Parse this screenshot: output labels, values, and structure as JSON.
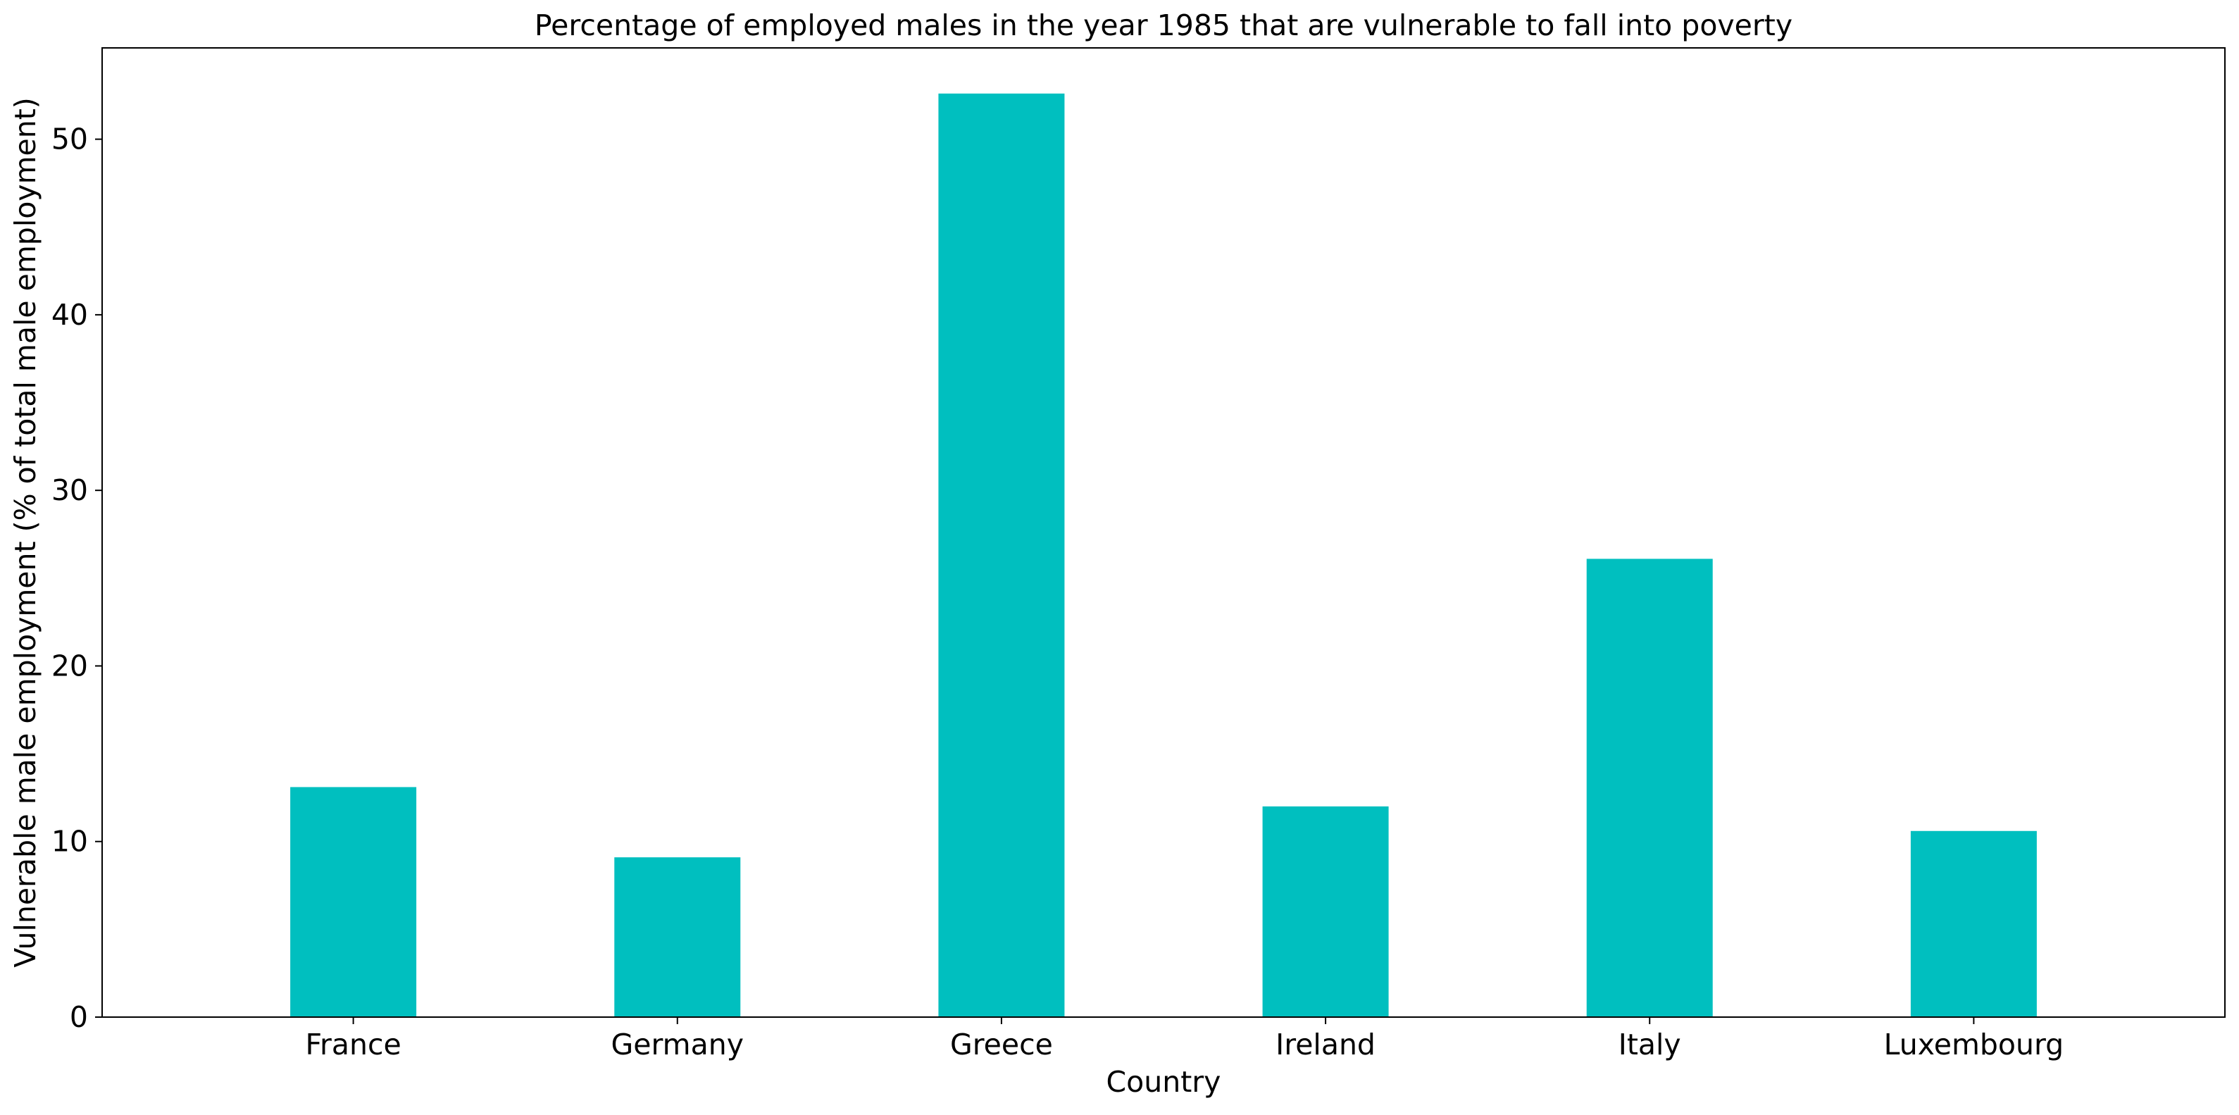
{
  "chart_data": {
    "type": "bar",
    "title": "Percentage of employed males in the year 1985 that are vulnerable to fall into poverty",
    "xlabel": "Country",
    "ylabel": "Vulnerable male employment (% of total male employment)",
    "categories": [
      "France",
      "Germany",
      "Greece",
      "Ireland",
      "Italy",
      "Luxembourg"
    ],
    "values": [
      13.1,
      9.1,
      52.6,
      12.0,
      26.1,
      10.6
    ],
    "ylim": [
      0,
      55.2
    ],
    "yticks": [
      0,
      10,
      20,
      30,
      40,
      50
    ],
    "grid": false,
    "legend": "none",
    "bar_color": "#00bfbf"
  }
}
